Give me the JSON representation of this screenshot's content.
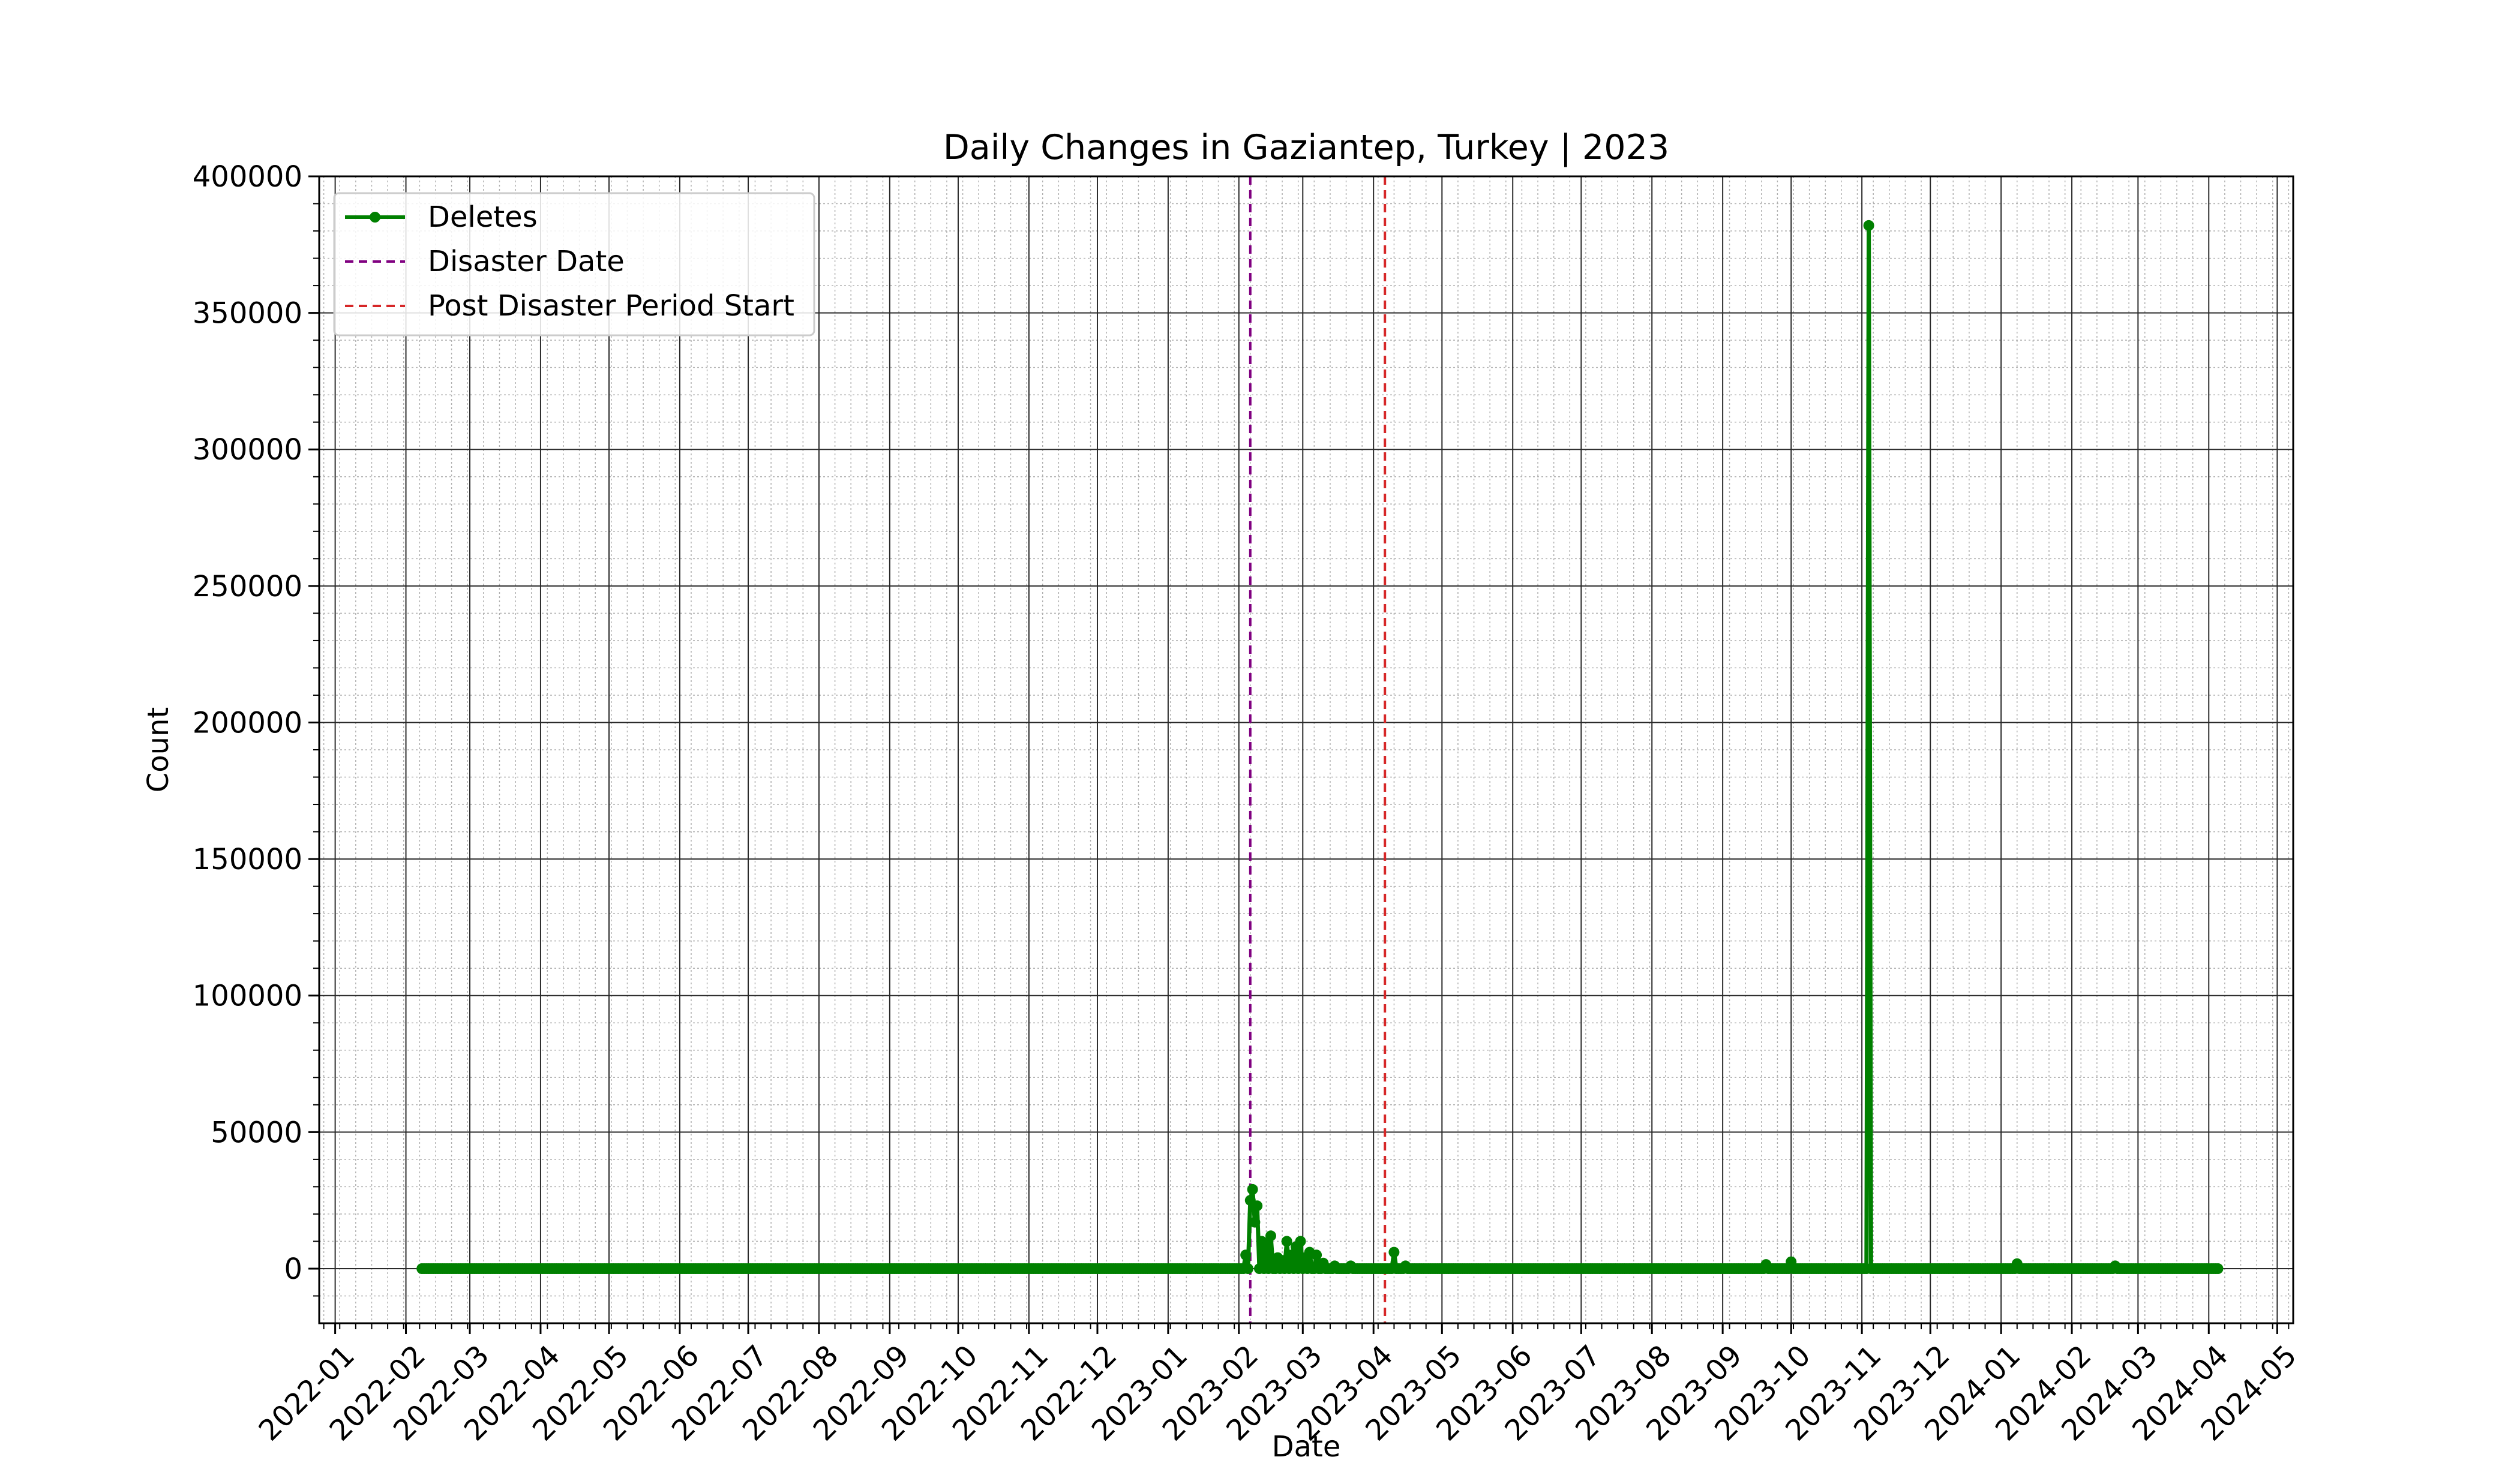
{
  "chart_data": {
    "type": "line",
    "title": "Daily Changes in Gaziantep, Turkey | 2023",
    "xlabel": "Date",
    "ylabel": "Count",
    "xlim": [
      "2021-12-25",
      "2024-05-08"
    ],
    "ylim": [
      -20000,
      400000
    ],
    "x_ticks": [
      "2022-01",
      "2022-02",
      "2022-03",
      "2022-04",
      "2022-05",
      "2022-06",
      "2022-07",
      "2022-08",
      "2022-09",
      "2022-10",
      "2022-11",
      "2022-12",
      "2023-01",
      "2023-02",
      "2023-03",
      "2023-04",
      "2023-05",
      "2023-06",
      "2023-07",
      "2023-08",
      "2023-09",
      "2023-10",
      "2023-11",
      "2023-12",
      "2024-01",
      "2024-02",
      "2024-03",
      "2024-04",
      "2024-05"
    ],
    "y_ticks": [
      0,
      50000,
      100000,
      150000,
      200000,
      250000,
      300000,
      350000,
      400000
    ],
    "grid": true,
    "legend_position": "top-left",
    "legend": [
      "Deletes",
      "Disaster Date",
      "Post Disaster Period Start"
    ],
    "series": [
      {
        "name": "Deletes",
        "color": "#008000",
        "baseline": {
          "start": "2022-02-08",
          "end": "2024-04-05",
          "value": 0
        },
        "points": [
          {
            "x": "2023-02-04",
            "y": 5000
          },
          {
            "x": "2023-02-06",
            "y": 25000
          },
          {
            "x": "2023-02-07",
            "y": 29000
          },
          {
            "x": "2023-02-08",
            "y": 17000
          },
          {
            "x": "2023-02-09",
            "y": 23000
          },
          {
            "x": "2023-02-11",
            "y": 10000
          },
          {
            "x": "2023-02-13",
            "y": 9000
          },
          {
            "x": "2023-02-15",
            "y": 12000
          },
          {
            "x": "2023-02-18",
            "y": 4000
          },
          {
            "x": "2023-02-20",
            "y": 3000
          },
          {
            "x": "2023-02-22",
            "y": 10000
          },
          {
            "x": "2023-02-24",
            "y": 5000
          },
          {
            "x": "2023-02-26",
            "y": 8000
          },
          {
            "x": "2023-02-28",
            "y": 10000
          },
          {
            "x": "2023-03-02",
            "y": 4000
          },
          {
            "x": "2023-03-04",
            "y": 6000
          },
          {
            "x": "2023-03-07",
            "y": 5000
          },
          {
            "x": "2023-03-10",
            "y": 2000
          },
          {
            "x": "2023-03-15",
            "y": 1000
          },
          {
            "x": "2023-03-22",
            "y": 1000
          },
          {
            "x": "2023-04-10",
            "y": 6000
          },
          {
            "x": "2023-04-15",
            "y": 1000
          },
          {
            "x": "2023-09-20",
            "y": 1500
          },
          {
            "x": "2023-10-01",
            "y": 2500
          },
          {
            "x": "2023-11-04",
            "y": 382000
          },
          {
            "x": "2024-01-08",
            "y": 1800
          },
          {
            "x": "2024-02-20",
            "y": 1000
          }
        ]
      }
    ],
    "reference_lines": [
      {
        "name": "Disaster Date",
        "x": "2023-02-06",
        "color": "#800080",
        "style": "dashed"
      },
      {
        "name": "Post Disaster Period Start",
        "x": "2023-04-06",
        "color": "#d62728",
        "style": "dashed"
      }
    ]
  }
}
